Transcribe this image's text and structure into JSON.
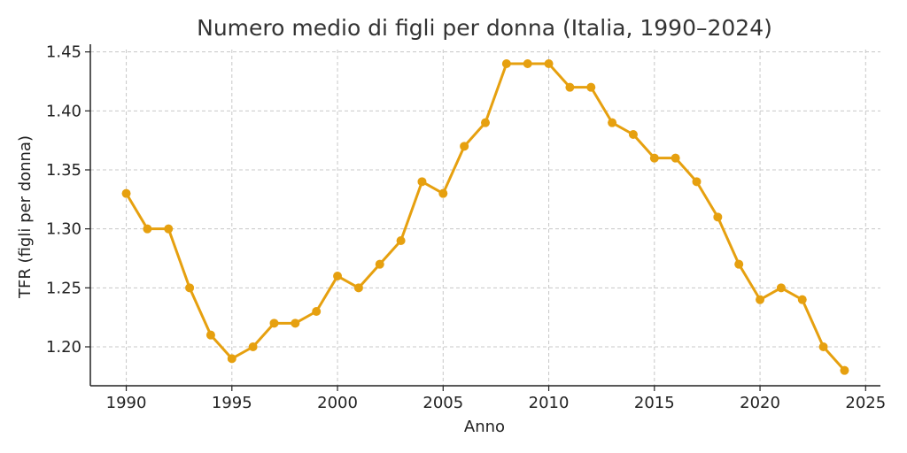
{
  "chart_data": {
    "type": "line",
    "title": "Numero medio di figli per donna (Italia, 1990–2024)",
    "xlabel": "Anno",
    "ylabel": "TFR (figli per donna)",
    "xlim": [
      1988.3,
      2025.7
    ],
    "ylim": [
      1.167,
      1.452
    ],
    "xticks": [
      1990,
      1995,
      2000,
      2005,
      2010,
      2015,
      2020,
      2025
    ],
    "yticks": [
      1.2,
      1.25,
      1.3,
      1.35,
      1.4,
      1.45
    ],
    "ytick_labels": [
      "1.20",
      "1.25",
      "1.30",
      "1.35",
      "1.40",
      "1.45"
    ],
    "grid": true,
    "color": "#E6A00F",
    "series": [
      {
        "x": [
          1990,
          1991,
          1992,
          1993,
          1994,
          1995,
          1996,
          1997,
          1998,
          1999,
          2000,
          2001,
          2002,
          2003,
          2004,
          2005,
          2006,
          2007,
          2008,
          2009,
          2010,
          2011,
          2012,
          2013,
          2014,
          2015,
          2016,
          2017,
          2018,
          2019,
          2020,
          2021,
          2022,
          2023,
          2024
        ],
        "values": [
          1.33,
          1.3,
          1.3,
          1.25,
          1.21,
          1.19,
          1.2,
          1.22,
          1.22,
          1.23,
          1.26,
          1.25,
          1.27,
          1.29,
          1.34,
          1.33,
          1.37,
          1.39,
          1.44,
          1.44,
          1.44,
          1.42,
          1.42,
          1.39,
          1.38,
          1.36,
          1.36,
          1.34,
          1.31,
          1.27,
          1.24,
          1.25,
          1.24,
          1.2,
          1.18
        ]
      }
    ]
  }
}
